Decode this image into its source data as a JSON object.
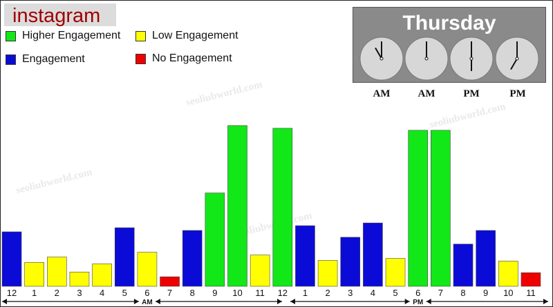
{
  "brand": {
    "name": "instagram"
  },
  "legend": [
    {
      "label": "Higher Engagement",
      "color": "#12e817"
    },
    {
      "label": "Low Engagement",
      "color": "#ffff00"
    },
    {
      "label": "Engagement",
      "color": "#0b0bd8"
    },
    {
      "label": "No Engagement",
      "color": "#ee0000"
    }
  ],
  "day_panel": {
    "title": "Thursday",
    "clocks": [
      {
        "label": "AM",
        "hour": 11,
        "minute": 0
      },
      {
        "label": "AM",
        "hour": 12,
        "minute": 0
      },
      {
        "label": "PM",
        "hour": 6,
        "minute": 0
      },
      {
        "label": "PM",
        "hour": 7,
        "minute": 0
      }
    ]
  },
  "watermark": "seoliubworld.com",
  "chart_data": {
    "type": "bar",
    "period_labels": [
      "AM",
      "PM"
    ],
    "categories": [
      "12",
      "1",
      "2",
      "3",
      "4",
      "5",
      "6",
      "7",
      "8",
      "9",
      "10",
      "11",
      "12",
      "1",
      "2",
      "3",
      "4",
      "5",
      "6",
      "7",
      "8",
      "9",
      "10",
      "11"
    ],
    "values": [
      80,
      35,
      43,
      21,
      33,
      86,
      50,
      14,
      82,
      137,
      236,
      46,
      232,
      89,
      38,
      72,
      93,
      41,
      229,
      229,
      62,
      82,
      37,
      20
    ],
    "levels": [
      "Engagement",
      "Low Engagement",
      "Low Engagement",
      "Low Engagement",
      "Low Engagement",
      "Engagement",
      "Low Engagement",
      "No Engagement",
      "Engagement",
      "Higher Engagement",
      "Higher Engagement",
      "Low Engagement",
      "Higher Engagement",
      "Engagement",
      "Low Engagement",
      "Engagement",
      "Engagement",
      "Low Engagement",
      "Higher Engagement",
      "Higher Engagement",
      "Engagement",
      "Engagement",
      "Low Engagement",
      "No Engagement"
    ],
    "colors": {
      "Higher Engagement": "#12e817",
      "Low Engagement": "#ffff00",
      "Engagement": "#0b0bd8",
      "No Engagement": "#ee0000"
    },
    "ylim": [
      0,
      240
    ]
  }
}
